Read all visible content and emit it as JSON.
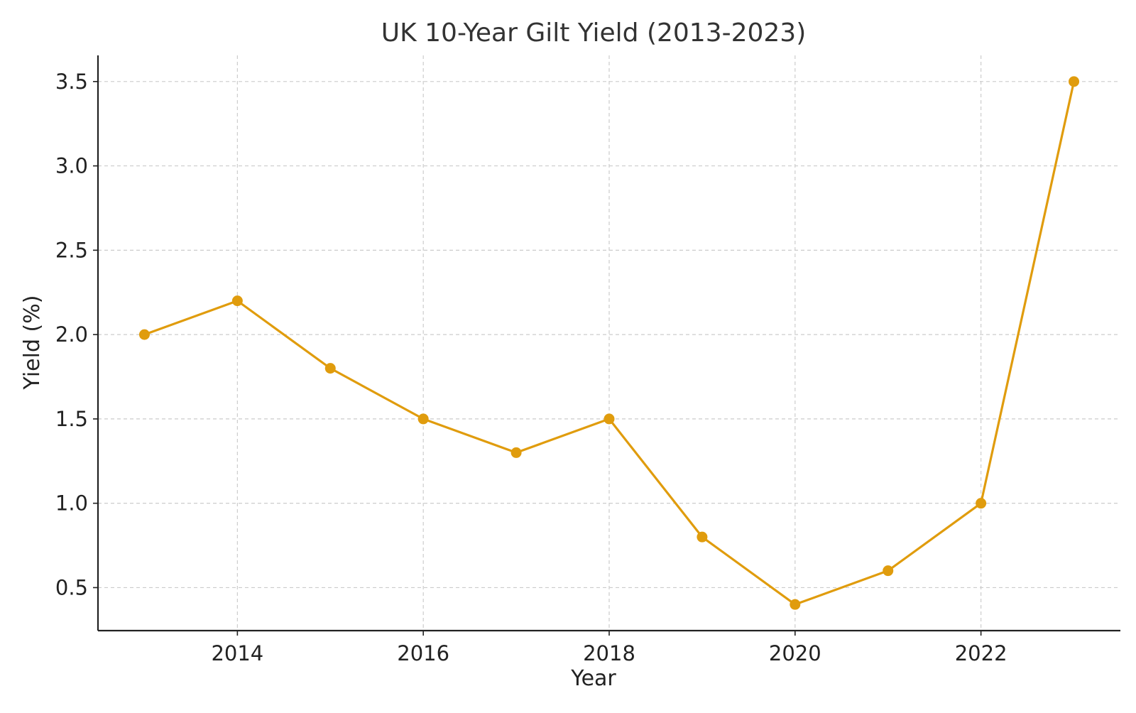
{
  "chart_data": {
    "type": "line",
    "title": "UK 10-Year Gilt Yield (2013-2023)",
    "xlabel": "Year",
    "ylabel": "Yield (%)",
    "x": [
      2013,
      2014,
      2015,
      2016,
      2017,
      2018,
      2019,
      2020,
      2021,
      2022,
      2023
    ],
    "series": [
      {
        "values": [
          2.0,
          2.2,
          1.8,
          1.5,
          1.3,
          1.5,
          0.8,
          0.4,
          0.6,
          1.0,
          3.5
        ],
        "color": "#e09c0d"
      }
    ],
    "xlim": [
      2012.5,
      2023.5
    ],
    "ylim": [
      0.245,
      3.655
    ],
    "xticks": [
      2014,
      2016,
      2018,
      2020,
      2022
    ],
    "xtick_labels": [
      "2014",
      "2016",
      "2018",
      "2020",
      "2022"
    ],
    "yticks": [
      0.5,
      1.0,
      1.5,
      2.0,
      2.5,
      3.0,
      3.5
    ],
    "ytick_labels": [
      "0.5",
      "1.0",
      "1.5",
      "2.0",
      "2.5",
      "3.0",
      "3.5"
    ],
    "grid": true,
    "grid_style": "dashed",
    "colors": {
      "grid": "#cccccc",
      "axis": "#222222",
      "text": "#222222",
      "title": "#333333"
    }
  }
}
